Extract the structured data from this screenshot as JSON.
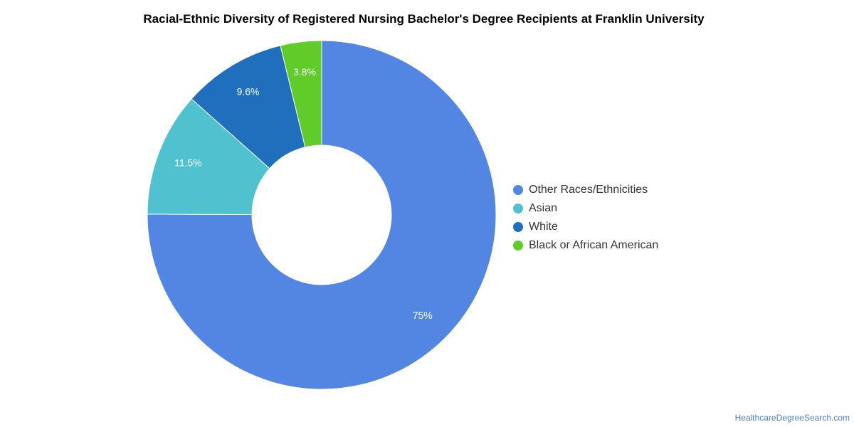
{
  "title": "Racial-Ethnic Diversity of Registered Nursing Bachelor's Degree Recipients at Franklin University",
  "credit": "HealthcareDegreeSearch.com",
  "chart_data": {
    "type": "pie",
    "donut": true,
    "title": "Racial-Ethnic Diversity of Registered Nursing Bachelor's Degree Recipients at Franklin University",
    "legend_position": "right",
    "categories": [
      "Other Races/Ethnicities",
      "Asian",
      "White",
      "Black or African American"
    ],
    "values": [
      75,
      11.5,
      9.6,
      3.8
    ],
    "labels": [
      "75%",
      "11.5%",
      "9.6%",
      "3.8%"
    ],
    "colors": [
      "#5385e3",
      "#50c1cf",
      "#1f6fbd",
      "#5fcc29"
    ],
    "series": [
      {
        "name": "Other Races/Ethnicities",
        "value": 75,
        "label": "75%",
        "color": "#5385e3"
      },
      {
        "name": "Asian",
        "value": 11.5,
        "label": "11.5%",
        "color": "#50c1cf"
      },
      {
        "name": "White",
        "value": 9.6,
        "label": "9.6%",
        "color": "#1f6fbd"
      },
      {
        "name": "Black or African American",
        "value": 3.8,
        "label": "3.8%",
        "color": "#5fcc29"
      }
    ]
  }
}
